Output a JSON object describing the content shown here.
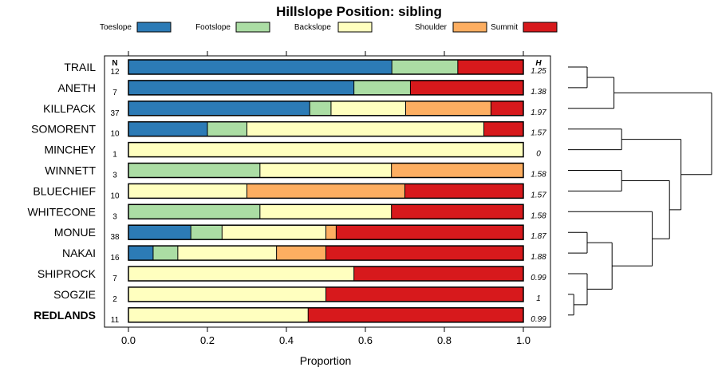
{
  "chart_data": {
    "type": "bar",
    "subtype": "stacked-horizontal-proportion",
    "title": "Hillslope Position: sibling",
    "xlabel": "Proportion",
    "xlim": [
      0,
      1
    ],
    "xticks": [
      "0.0",
      "0.2",
      "0.4",
      "0.6",
      "0.8",
      "1.0"
    ],
    "n_header": "N",
    "h_header": "H",
    "legend": [
      {
        "name": "Toeslope",
        "color": "#2c7bb6"
      },
      {
        "name": "Footslope",
        "color": "#abdda4"
      },
      {
        "name": "Backslope",
        "color": "#ffffbf"
      },
      {
        "name": "Shoulder",
        "color": "#fdae61"
      },
      {
        "name": "Summit",
        "color": "#d7191c"
      }
    ],
    "rows": [
      {
        "label": "TRAIL",
        "n": "12",
        "h": "1.25",
        "bold": false,
        "values": [
          0.667,
          0.167,
          0,
          0,
          0.166
        ]
      },
      {
        "label": "ANETH",
        "n": "7",
        "h": "1.38",
        "bold": false,
        "values": [
          0.571,
          0.143,
          0,
          0,
          0.286
        ]
      },
      {
        "label": "KILLPACK",
        "n": "37",
        "h": "1.97",
        "bold": false,
        "values": [
          0.459,
          0.054,
          0.189,
          0.216,
          0.082
        ]
      },
      {
        "label": "SOMORENT",
        "n": "10",
        "h": "1.57",
        "bold": false,
        "values": [
          0.2,
          0.1,
          0.6,
          0,
          0.1
        ]
      },
      {
        "label": "MINCHEY",
        "n": "1",
        "h": "0",
        "bold": false,
        "values": [
          0,
          0,
          1.0,
          0,
          0
        ]
      },
      {
        "label": "WINNETT",
        "n": "3",
        "h": "1.58",
        "bold": false,
        "values": [
          0,
          0.333,
          0.333,
          0.334,
          0
        ]
      },
      {
        "label": "BLUECHIEF",
        "n": "10",
        "h": "1.57",
        "bold": false,
        "values": [
          0,
          0,
          0.3,
          0.4,
          0.3
        ]
      },
      {
        "label": "WHITECONE",
        "n": "3",
        "h": "1.58",
        "bold": false,
        "values": [
          0,
          0.333,
          0.333,
          0,
          0.334
        ]
      },
      {
        "label": "MONUE",
        "n": "38",
        "h": "1.87",
        "bold": false,
        "values": [
          0.158,
          0.079,
          0.263,
          0.026,
          0.474
        ]
      },
      {
        "label": "NAKAI",
        "n": "16",
        "h": "1.88",
        "bold": false,
        "values": [
          0.0625,
          0.0625,
          0.25,
          0.125,
          0.5
        ]
      },
      {
        "label": "SHIPROCK",
        "n": "7",
        "h": "0.99",
        "bold": false,
        "values": [
          0,
          0,
          0.571,
          0,
          0.429
        ]
      },
      {
        "label": "SOGZIE",
        "n": "2",
        "h": "1",
        "bold": false,
        "values": [
          0,
          0,
          0.5,
          0,
          0.5
        ]
      },
      {
        "label": "REDLANDS",
        "n": "11",
        "h": "0.99",
        "bold": true,
        "values": [
          0,
          0,
          0.455,
          0,
          0.545
        ]
      }
    ],
    "dendrogram": {
      "leaves": [
        "TRAIL",
        "ANETH",
        "KILLPACK",
        "SOMORENT",
        "MINCHEY",
        "WINNETT",
        "BLUECHIEF",
        "WHITECONE",
        "MONUE",
        "NAKAI",
        "SHIPROCK",
        "SOGZIE",
        "REDLANDS"
      ],
      "merges": [
        {
          "a": "L0",
          "b": "L1",
          "h": 0.1
        },
        {
          "a": "M0",
          "b": "L2",
          "h": 0.24
        },
        {
          "a": "L3",
          "b": "L4",
          "h": 0.28
        },
        {
          "a": "L5",
          "b": "L6",
          "h": 0.28
        },
        {
          "a": "L8",
          "b": "L9",
          "h": 0.1
        },
        {
          "a": "L11",
          "b": "L12",
          "h": 0.03
        },
        {
          "a": "L10",
          "b": "M5",
          "h": 0.1
        },
        {
          "a": "M4",
          "b": "M6",
          "h": 0.23
        },
        {
          "a": "L7",
          "b": "M7",
          "h": 0.44
        },
        {
          "a": "M3",
          "b": "M8",
          "h": 0.53
        },
        {
          "a": "M2",
          "b": "M9",
          "h": 0.59
        },
        {
          "a": "M1",
          "b": "M10",
          "h": 0.75
        }
      ]
    }
  }
}
